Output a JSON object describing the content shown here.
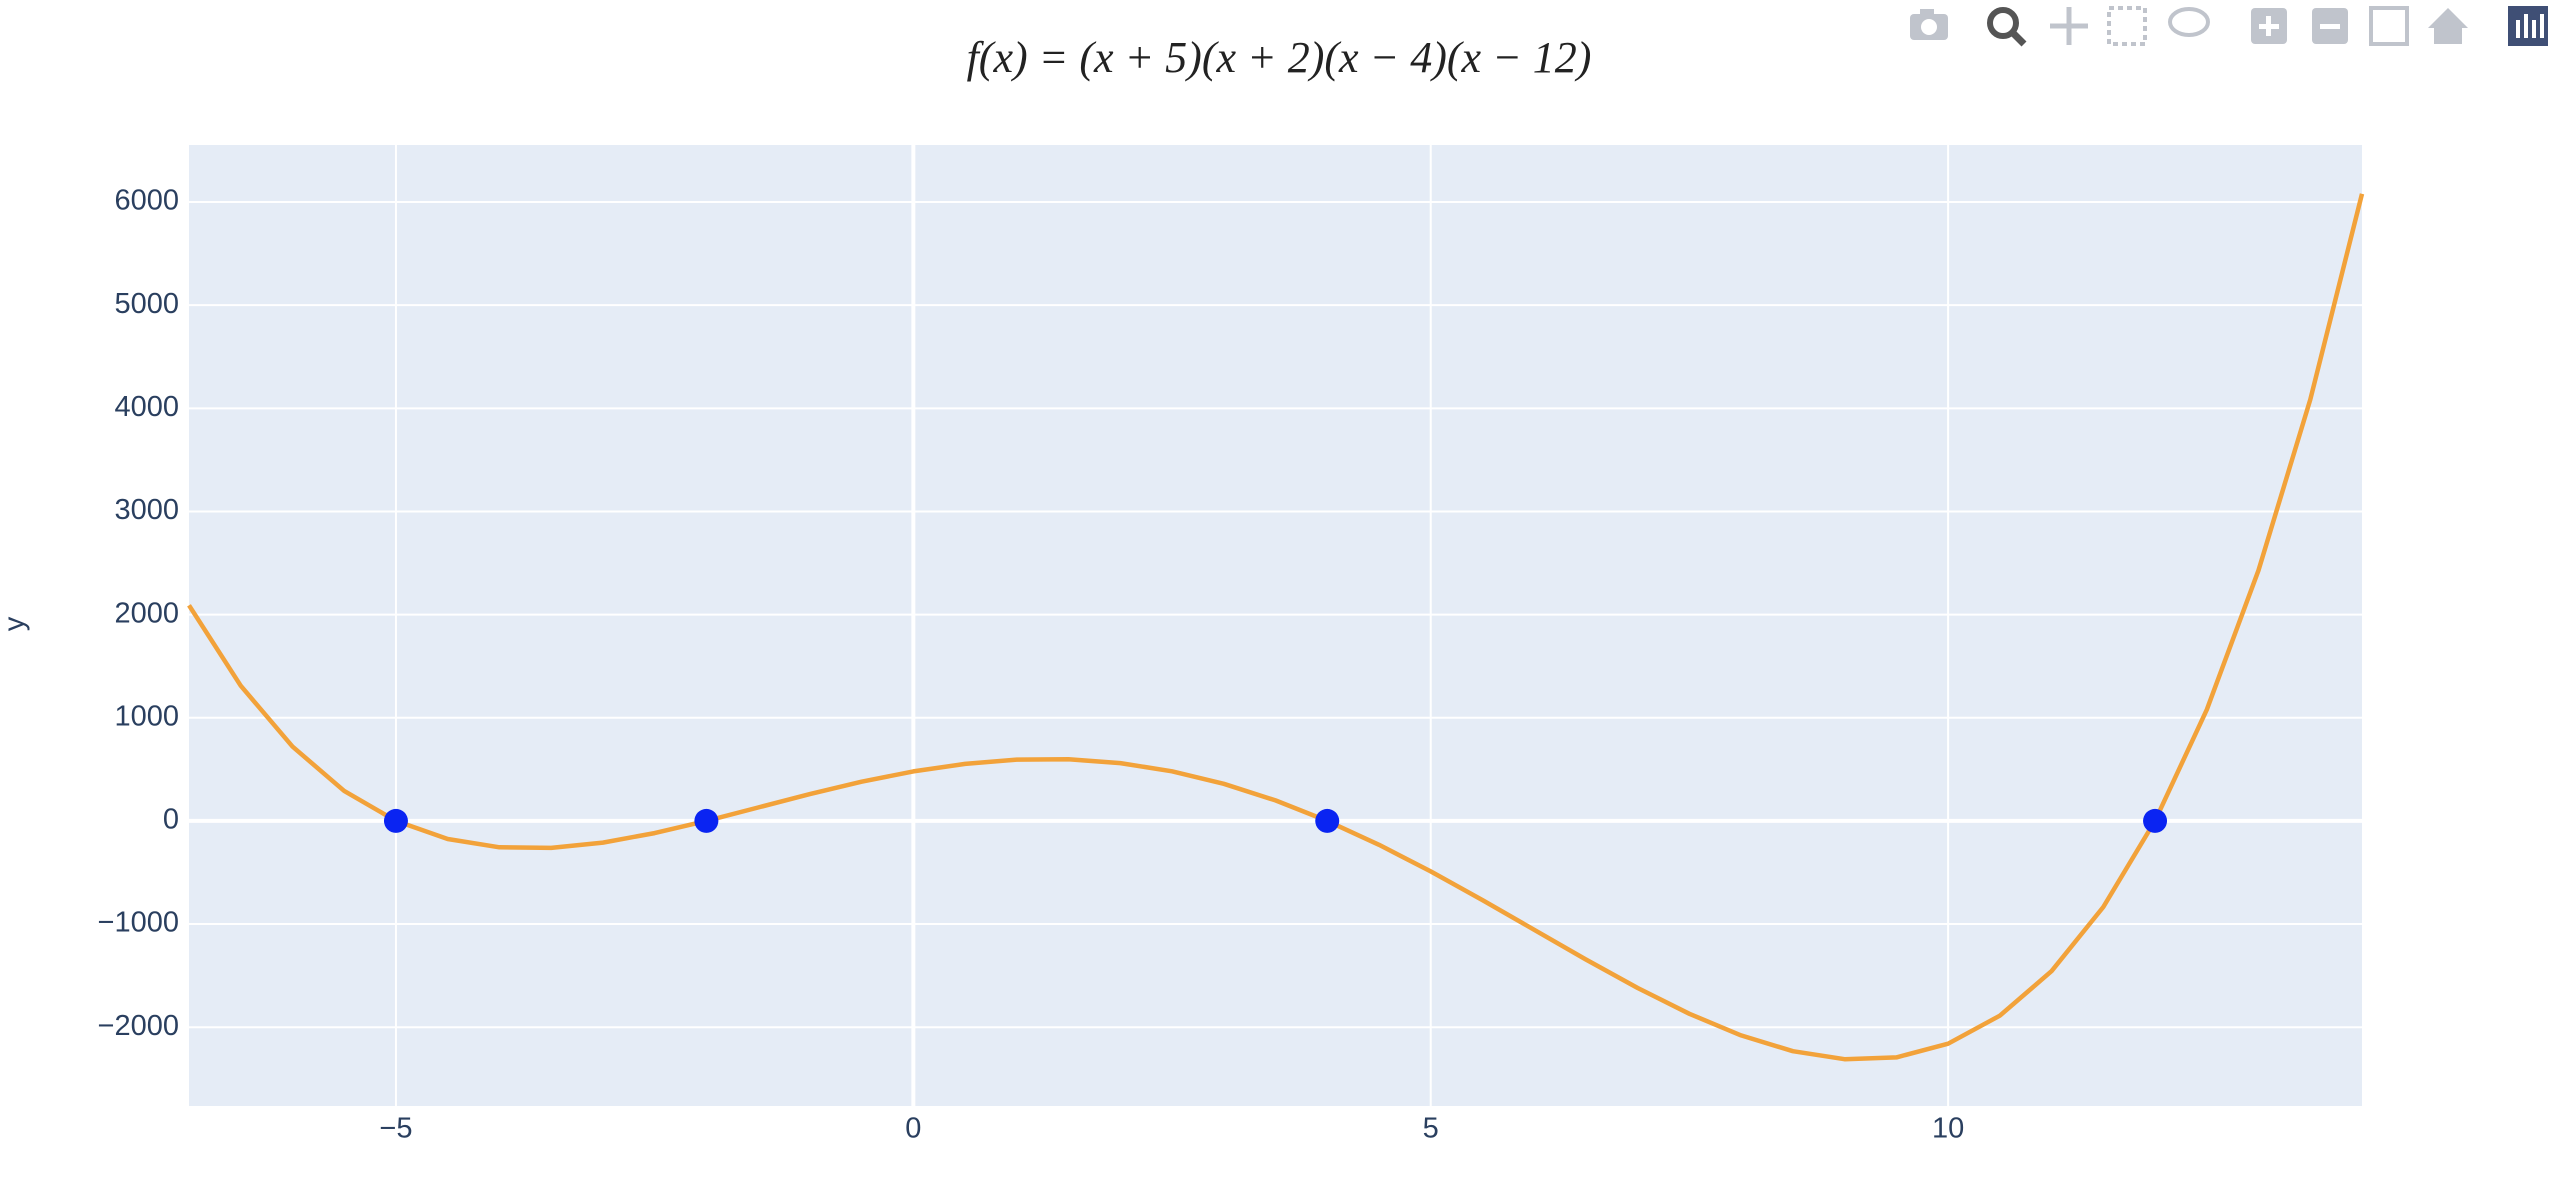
{
  "chart_data": {
    "type": "line",
    "title": "f(x) = (x + 5)(x + 2)(x − 4)(x − 12)",
    "y_label": "y",
    "series": [
      {
        "mode": "lines",
        "color": "#f2a23a",
        "x": [
          -7,
          -6.5,
          -6,
          -5.5,
          -5,
          -4.5,
          -4,
          -3.5,
          -3,
          -2.5,
          -2,
          -1.5,
          -1,
          -0.5,
          0,
          0.5,
          1,
          1.5,
          2,
          2.5,
          3,
          3.5,
          4,
          4.5,
          5,
          5.5,
          6,
          6.5,
          7,
          7.5,
          8,
          8.5,
          9,
          9.5,
          10,
          10.5,
          11,
          11.5,
          12,
          12.5,
          13,
          13.5,
          14
        ],
        "values": [
          2090,
          1311,
          720,
          291,
          0,
          -175,
          -256,
          -262,
          -210,
          -118,
          0,
          130,
          260,
          380,
          480,
          553,
          594,
          597,
          560,
          481,
          360,
          199,
          0,
          -232,
          -490,
          -768,
          -1056,
          -1344,
          -1620,
          -1870,
          -2080,
          -2233,
          -2310,
          -2293,
          -2160,
          -1889,
          -1456,
          -835,
          0,
          1078,
          2430,
          4086,
          6080
        ]
      },
      {
        "mode": "markers",
        "color": "#0a24f2",
        "x": [
          -5,
          -2,
          4,
          12
        ],
        "values": [
          0,
          0,
          0,
          0
        ]
      }
    ],
    "xlim": [
      -7,
      14
    ],
    "xticks": [
      {
        "value": -5,
        "label": "−5"
      },
      0,
      5,
      10
    ],
    "ylim": [
      -2764,
      6553
    ],
    "yticks": [
      {
        "value": -2000,
        "label": "−2000"
      },
      {
        "value": -1000,
        "label": "−1000"
      },
      0,
      1000,
      2000,
      3000,
      4000,
      5000,
      6000
    ],
    "grid": true
  }
}
